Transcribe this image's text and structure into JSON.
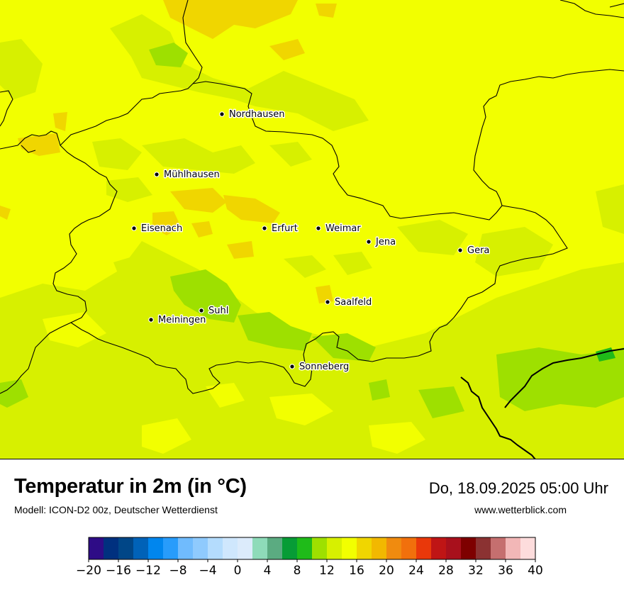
{
  "map": {
    "background_color": "#f2ff00",
    "cities": [
      {
        "name": "Nordhausen"
      },
      {
        "name": "Mühlhausen"
      },
      {
        "name": "Eisenach"
      },
      {
        "name": "Erfurt"
      },
      {
        "name": "Weimar"
      },
      {
        "name": "Jena"
      },
      {
        "name": "Gera"
      },
      {
        "name": "Suhl"
      },
      {
        "name": "Meiningen"
      },
      {
        "name": "Saalfeld"
      },
      {
        "name": "Sonneberg"
      }
    ]
  },
  "header": {
    "title": "Temperatur in 2m (in °C)",
    "subtitle": "Modell: ICON-D2 00z, Deutscher Wetterdienst",
    "datetime": "Do, 18.09.2025 05:00 Uhr",
    "website": "www.wetterblick.com"
  },
  "legend": {
    "colors": [
      "#2e0c86",
      "#00307f",
      "#004687",
      "#0062b8",
      "#0086ee",
      "#289cfb",
      "#70bbfd",
      "#8fcafd",
      "#b4dcfd",
      "#cfe7fd",
      "#dcebfb",
      "#8edbb9",
      "#5bab81",
      "#079c36",
      "#1fbb19",
      "#9ee000",
      "#d7f000",
      "#f2ff00",
      "#f0d600",
      "#f2b800",
      "#f08b0f",
      "#f1700c",
      "#e9380a",
      "#bf1515",
      "#a8101c",
      "#7e0000",
      "#8b3232",
      "#c56f6f",
      "#f2b7b7",
      "#fddcdc"
    ],
    "tick_labels": [
      "−20",
      "−16",
      "−12",
      "−8",
      "−4",
      "0",
      "4",
      "8",
      "12",
      "16",
      "20",
      "24",
      "28",
      "32",
      "36",
      "40"
    ]
  }
}
